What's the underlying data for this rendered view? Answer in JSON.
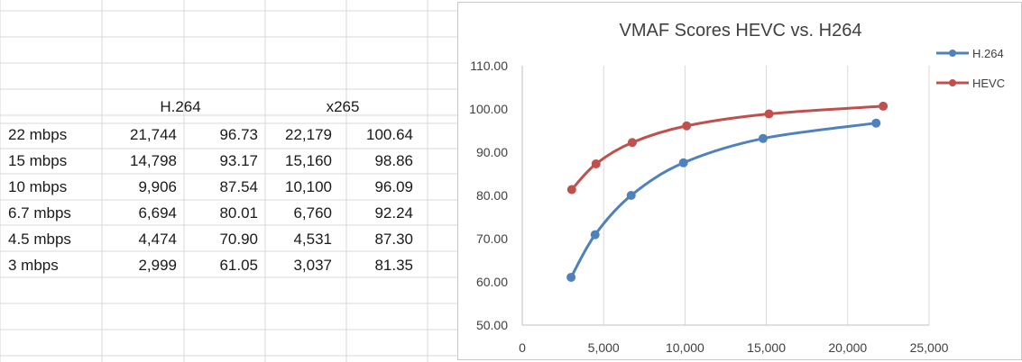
{
  "table": {
    "headers": {
      "h264": "H.264",
      "x265": "x265"
    },
    "rows": [
      {
        "label": "22 mbps",
        "h264_kbps": "21,744",
        "h264_vmaf": "96.73",
        "x265_kbps": "22,179",
        "x265_vmaf": "100.64"
      },
      {
        "label": "15 mbps",
        "h264_kbps": "14,798",
        "h264_vmaf": "93.17",
        "x265_kbps": "15,160",
        "x265_vmaf": "98.86"
      },
      {
        "label": "10 mbps",
        "h264_kbps": "9,906",
        "h264_vmaf": "87.54",
        "x265_kbps": "10,100",
        "x265_vmaf": "96.09"
      },
      {
        "label": "6.7 mbps",
        "h264_kbps": "6,694",
        "h264_vmaf": "80.01",
        "x265_kbps": "6,760",
        "x265_vmaf": "92.24"
      },
      {
        "label": "4.5 mbps",
        "h264_kbps": "4,474",
        "h264_vmaf": "70.90",
        "x265_kbps": "4,531",
        "x265_vmaf": "87.30"
      },
      {
        "label": "3 mbps",
        "h264_kbps": "2,999",
        "h264_vmaf": "61.05",
        "x265_kbps": "3,037",
        "x265_vmaf": "81.35"
      }
    ]
  },
  "chart_data": {
    "type": "scatter",
    "title": "VMAF Scores HEVC vs. H264",
    "xlabel": "",
    "ylabel": "",
    "xlim": [
      0,
      25000
    ],
    "ylim": [
      50,
      110
    ],
    "x_ticks": [
      0,
      5000,
      10000,
      15000,
      20000,
      25000
    ],
    "x_tick_labels": [
      "0",
      "5,000",
      "10,000",
      "15,000",
      "20,000",
      "25,000"
    ],
    "y_ticks": [
      50,
      60,
      70,
      80,
      90,
      100,
      110
    ],
    "y_tick_labels": [
      "50.00",
      "60.00",
      "70.00",
      "80.00",
      "90.00",
      "100.00",
      "110.00"
    ],
    "grid": "vertical",
    "legend_position": "right",
    "series": [
      {
        "name": "H.264",
        "color": "#4f81bd",
        "x": [
          2999,
          4474,
          6694,
          9906,
          14798,
          21744
        ],
        "y": [
          61.05,
          70.9,
          80.01,
          87.54,
          93.17,
          96.73
        ]
      },
      {
        "name": "HEVC",
        "color": "#c0504d",
        "x": [
          3037,
          4531,
          6760,
          10100,
          15160,
          22179
        ],
        "y": [
          81.35,
          87.3,
          92.24,
          96.09,
          98.86,
          100.64
        ]
      }
    ]
  }
}
